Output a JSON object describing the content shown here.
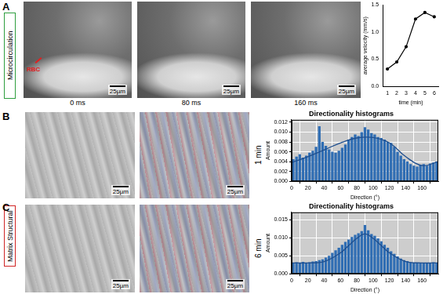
{
  "figure": {
    "sections": [
      {
        "label": "Microcirculation",
        "color": "#2e9e3e"
      },
      {
        "label": "Matrix Structural",
        "color": "#d02424"
      }
    ],
    "panels": [
      {
        "letter": "A",
        "images": [
          {
            "caption": "0 ms",
            "scale_bar": "25µm",
            "annotation": "RBC"
          },
          {
            "caption": "80 ms",
            "scale_bar": "25µm"
          },
          {
            "caption": "160 ms",
            "scale_bar": "25µm"
          }
        ]
      },
      {
        "letter": "B",
        "time": "1 min",
        "images": [
          {
            "scale_bar": "25µm"
          },
          {
            "scale_bar": "25µm"
          }
        ]
      },
      {
        "letter": "C",
        "time": "6 min",
        "images": [
          {
            "scale_bar": "25µm"
          },
          {
            "scale_bar": "25µm"
          }
        ]
      }
    ]
  },
  "chart_data": [
    {
      "type": "line",
      "xlabel": "time (min)",
      "ylabel": "average velocity (mm/s)",
      "x": [
        1,
        2,
        3,
        4,
        5,
        6
      ],
      "values": [
        0.32,
        0.45,
        0.73,
        1.24,
        1.36,
        1.28
      ],
      "color": "#000000",
      "xlim": [
        0.5,
        6.5
      ],
      "xticks": [
        1,
        2,
        3,
        4,
        5,
        6
      ],
      "ylim": [
        0,
        1.5
      ],
      "yticks": [
        {
          "value": 0,
          "label": "0.0"
        },
        0.5,
        {
          "value": 1,
          "label": "1.0"
        },
        1.5
      ],
      "grid": false
    },
    {
      "type": "histogram",
      "title": "Directionality histograms",
      "xlabel": "Direction (°)",
      "ylabel": "Amount",
      "bins": [
        0,
        4,
        8,
        12,
        16,
        20,
        24,
        28,
        32,
        36,
        40,
        44,
        48,
        52,
        56,
        60,
        64,
        68,
        72,
        76,
        80,
        84,
        88,
        92,
        96,
        100,
        104,
        108,
        112,
        116,
        120,
        124,
        128,
        132,
        136,
        140,
        144,
        148,
        152,
        156,
        160,
        164,
        168,
        172,
        176,
        180
      ],
      "counts": [
        0.0045,
        0.005,
        0.0055,
        0.0048,
        0.0052,
        0.0058,
        0.0062,
        0.007,
        0.0112,
        0.008,
        0.0072,
        0.0065,
        0.006,
        0.0058,
        0.0062,
        0.0068,
        0.0075,
        0.0085,
        0.009,
        0.0095,
        0.0092,
        0.01,
        0.011,
        0.0105,
        0.0098,
        0.0095,
        0.009,
        0.0088,
        0.0085,
        0.008,
        0.0078,
        0.007,
        0.006,
        0.0052,
        0.0045,
        0.004,
        0.0035,
        0.0032,
        0.003,
        0.0033,
        0.0035,
        0.0032,
        0.0036,
        0.0038,
        0.004
      ],
      "color": "#2f6db3",
      "fit": {
        "x": [
          0,
          20,
          40,
          60,
          80,
          100,
          120,
          140,
          160,
          180
        ],
        "values": [
          0.0038,
          0.005,
          0.0064,
          0.0078,
          0.0088,
          0.0089,
          0.0078,
          0.005,
          0.0032,
          0.004
        ]
      },
      "xlim": [
        0,
        180
      ],
      "xticks": [
        0,
        20,
        40,
        60,
        80,
        100,
        120,
        140,
        160
      ],
      "ylim": [
        0,
        0.0125
      ],
      "yticks": [
        {
          "value": 0,
          "label": "0.000"
        },
        0.002,
        0.004,
        0.006,
        0.008,
        {
          "value": 0.01,
          "label": "0.010"
        },
        0.012
      ],
      "grid": true
    },
    {
      "type": "histogram",
      "title": "Directionality histograms",
      "xlabel": "Direction (°)",
      "ylabel": "Amount",
      "bins": [
        0,
        4,
        8,
        12,
        16,
        20,
        24,
        28,
        32,
        36,
        40,
        44,
        48,
        52,
        56,
        60,
        64,
        68,
        72,
        76,
        80,
        84,
        88,
        92,
        96,
        100,
        104,
        108,
        112,
        116,
        120,
        124,
        128,
        132,
        136,
        140,
        144,
        148,
        152,
        156,
        160,
        164,
        168,
        172,
        176,
        180
      ],
      "counts": [
        0.003,
        0.0032,
        0.003,
        0.0033,
        0.0031,
        0.0032,
        0.0034,
        0.0035,
        0.0038,
        0.004,
        0.0045,
        0.005,
        0.0058,
        0.0065,
        0.0072,
        0.008,
        0.0088,
        0.0095,
        0.0102,
        0.0108,
        0.0112,
        0.0118,
        0.0135,
        0.012,
        0.011,
        0.0105,
        0.0098,
        0.009,
        0.008,
        0.0072,
        0.0062,
        0.0055,
        0.0048,
        0.0042,
        0.0038,
        0.0035,
        0.0032,
        0.003,
        0.0031,
        0.0029,
        0.003,
        0.0031,
        0.003,
        0.0032,
        0.003
      ],
      "color": "#2f6db3",
      "fit": {
        "x": [
          0,
          20,
          40,
          60,
          70,
          80,
          90,
          100,
          110,
          120,
          140,
          160,
          180
        ],
        "values": [
          0.003,
          0.003,
          0.0034,
          0.0058,
          0.0078,
          0.0098,
          0.011,
          0.0098,
          0.0078,
          0.0058,
          0.0034,
          0.003,
          0.003
        ]
      },
      "xlim": [
        0,
        180
      ],
      "xticks": [
        0,
        20,
        40,
        60,
        80,
        100,
        120,
        140,
        160
      ],
      "ylim": [
        0,
        0.017
      ],
      "yticks": [
        {
          "value": 0,
          "label": "0.000"
        },
        0.005,
        {
          "value": 0.01,
          "label": "0.010"
        },
        0.015
      ],
      "grid": true
    }
  ]
}
